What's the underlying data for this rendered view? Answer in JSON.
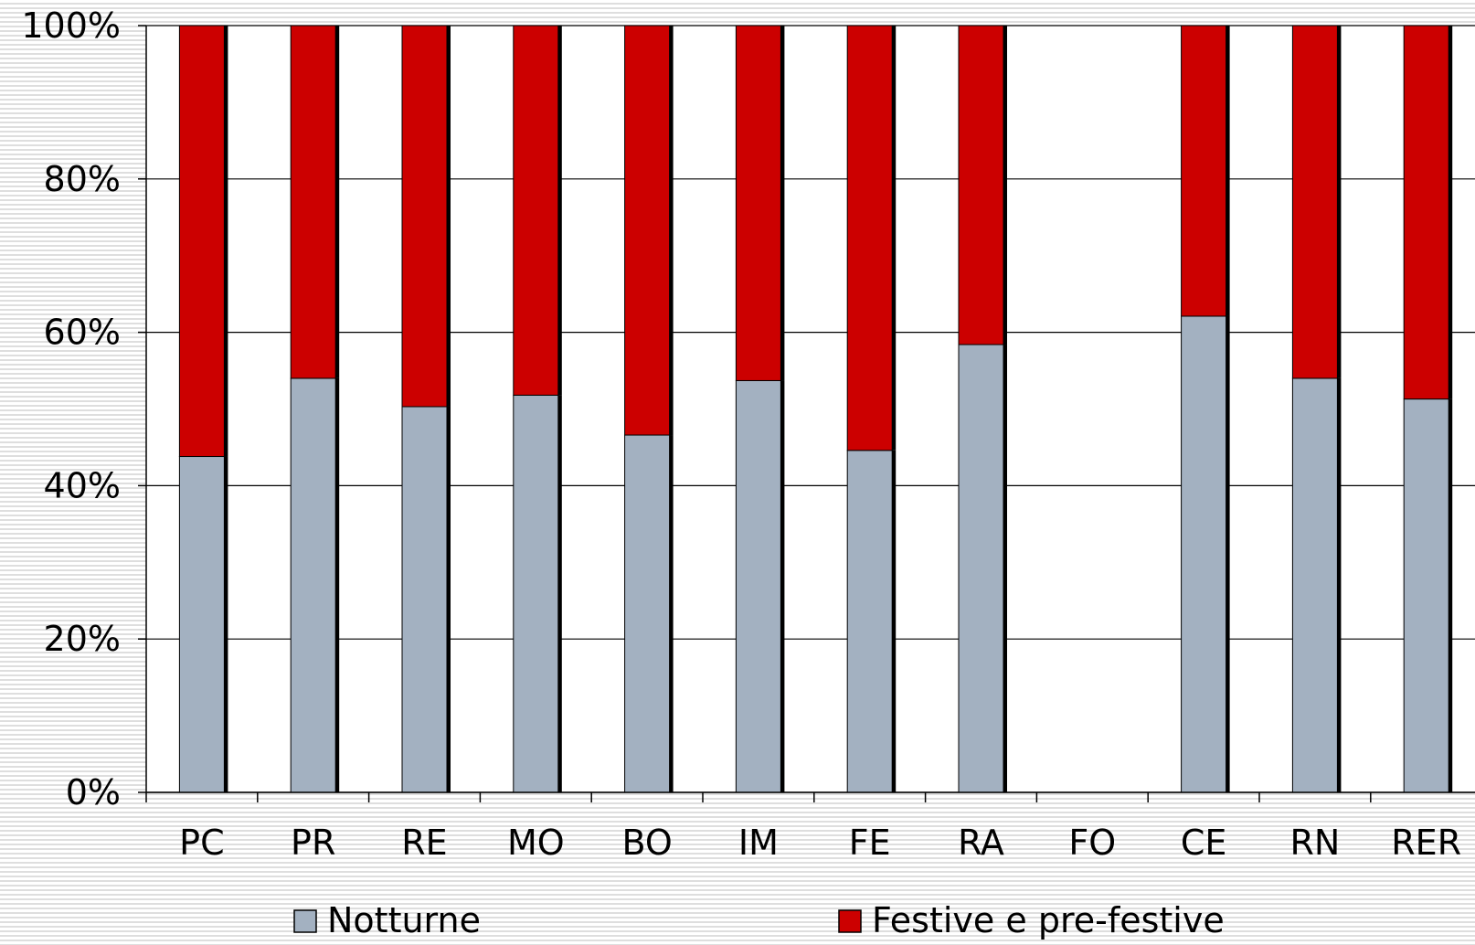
{
  "chart_data": {
    "type": "bar",
    "stacked": true,
    "percent": true,
    "categories": [
      "PC",
      "PR",
      "RE",
      "MO",
      "BO",
      "IM",
      "FE",
      "RA",
      "FO",
      "CE",
      "RN",
      "RER"
    ],
    "series": [
      {
        "name": "Notturne",
        "color": "#a3b1c1",
        "values": [
          43.8,
          54.0,
          50.3,
          51.8,
          46.6,
          53.7,
          44.6,
          58.4,
          0,
          62.1,
          54.0,
          51.3
        ]
      },
      {
        "name": "Festive e pre-festive",
        "color": "#cc0000",
        "values": [
          56.2,
          46.0,
          49.7,
          48.2,
          53.4,
          46.3,
          55.4,
          41.6,
          0,
          37.9,
          46.0,
          48.7
        ]
      }
    ],
    "ylim": [
      0,
      100
    ],
    "yticks": [
      "0%",
      "20%",
      "40%",
      "60%",
      "80%",
      "100%"
    ],
    "grid": true,
    "legend_position": "bottom",
    "title": "",
    "xlabel": "",
    "ylabel": ""
  }
}
